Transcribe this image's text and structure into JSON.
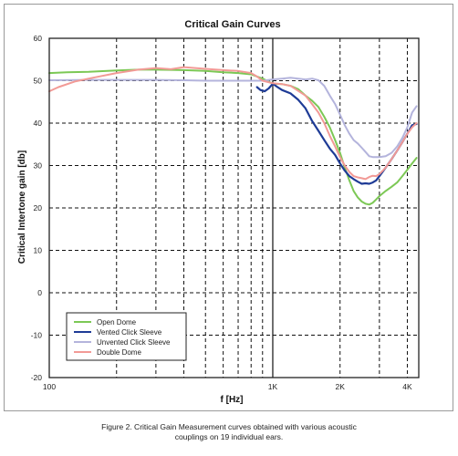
{
  "caption": {
    "line1": "Figure 2. Critical Gain Measurement curves obtained with various acoustic",
    "line2": "couplings on 19 individual ears."
  },
  "chart_data": {
    "type": "line",
    "title": "Critical Gain Curves",
    "xlabel": "f [Hz]",
    "ylabel": "Critical Intertone gain [db]",
    "xscale": "log",
    "xlim": [
      100,
      4500
    ],
    "ylim": [
      -20,
      60
    ],
    "yticks": [
      -20,
      -10,
      0,
      10,
      20,
      30,
      40,
      50,
      60
    ],
    "xtick_labels": [
      {
        "value": 100,
        "label": "100"
      },
      {
        "value": 1000,
        "label": "1K"
      },
      {
        "value": 2000,
        "label": "2K"
      },
      {
        "value": 4000,
        "label": "4K"
      }
    ],
    "grid": true,
    "legend_position": "bottom-left",
    "series": [
      {
        "name": "Open Dome",
        "color": "#7cc855",
        "points": [
          [
            100,
            51.8
          ],
          [
            120,
            52
          ],
          [
            150,
            52.1
          ],
          [
            200,
            52.4
          ],
          [
            250,
            52.6
          ],
          [
            300,
            52.6
          ],
          [
            400,
            52.5
          ],
          [
            500,
            52.3
          ],
          [
            600,
            52
          ],
          [
            700,
            51.8
          ],
          [
            800,
            51.5
          ],
          [
            900,
            50.5
          ],
          [
            1000,
            49.3
          ],
          [
            1100,
            49.2
          ],
          [
            1200,
            48.8
          ],
          [
            1300,
            48
          ],
          [
            1400,
            46.5
          ],
          [
            1500,
            45.3
          ],
          [
            1600,
            43.8
          ],
          [
            1700,
            41.5
          ],
          [
            1800,
            39
          ],
          [
            1900,
            36
          ],
          [
            2000,
            33
          ],
          [
            2100,
            29.5
          ],
          [
            2200,
            26.5
          ],
          [
            2300,
            24
          ],
          [
            2400,
            22.5
          ],
          [
            2500,
            21.5
          ],
          [
            2600,
            21
          ],
          [
            2700,
            20.8
          ],
          [
            2800,
            21.2
          ],
          [
            2900,
            22
          ],
          [
            3000,
            22.8
          ],
          [
            3200,
            24
          ],
          [
            3400,
            25
          ],
          [
            3600,
            26
          ],
          [
            3800,
            27.5
          ],
          [
            4000,
            29
          ],
          [
            4200,
            30.5
          ],
          [
            4400,
            31.8
          ]
        ]
      },
      {
        "name": "Vented Click Sleeve",
        "color": "#1e3b96",
        "points": [
          [
            850,
            48.5
          ],
          [
            880,
            47.8
          ],
          [
            920,
            47.5
          ],
          [
            960,
            48.2
          ],
          [
            1000,
            49.3
          ],
          [
            1050,
            48.5
          ],
          [
            1100,
            47.8
          ],
          [
            1200,
            47
          ],
          [
            1300,
            45.5
          ],
          [
            1400,
            43.5
          ],
          [
            1500,
            40.5
          ],
          [
            1600,
            38.2
          ],
          [
            1700,
            36
          ],
          [
            1800,
            34
          ],
          [
            1900,
            32.5
          ],
          [
            2000,
            30.5
          ],
          [
            2100,
            28.8
          ],
          [
            2200,
            27.5
          ],
          [
            2300,
            26.8
          ],
          [
            2400,
            26.2
          ],
          [
            2500,
            25.7
          ],
          [
            2600,
            25.8
          ],
          [
            2700,
            25.7
          ],
          [
            2800,
            26
          ],
          [
            2900,
            26.5
          ],
          [
            3000,
            27.5
          ],
          [
            3200,
            29.5
          ],
          [
            3400,
            31.5
          ],
          [
            3600,
            33.5
          ],
          [
            3800,
            35.5
          ],
          [
            4000,
            37.5
          ],
          [
            4200,
            39.5
          ],
          [
            4400,
            39.8
          ]
        ]
      },
      {
        "name": "Unvented Click Sleeve",
        "color": "#b4b4dc",
        "points": [
          [
            100,
            50.1
          ],
          [
            150,
            50.2
          ],
          [
            200,
            50.2
          ],
          [
            300,
            50.2
          ],
          [
            400,
            50.1
          ],
          [
            500,
            50
          ],
          [
            700,
            50
          ],
          [
            800,
            50
          ],
          [
            900,
            50
          ],
          [
            1000,
            50.3
          ],
          [
            1100,
            50.5
          ],
          [
            1200,
            50.7
          ],
          [
            1300,
            50.5
          ],
          [
            1400,
            50.3
          ],
          [
            1500,
            50.5
          ],
          [
            1600,
            50.1
          ],
          [
            1700,
            48.8
          ],
          [
            1800,
            46.5
          ],
          [
            1900,
            44.5
          ],
          [
            2000,
            42
          ],
          [
            2100,
            39.5
          ],
          [
            2200,
            37.5
          ],
          [
            2300,
            36
          ],
          [
            2400,
            35.2
          ],
          [
            2500,
            34.2
          ],
          [
            2600,
            33.2
          ],
          [
            2700,
            32.2
          ],
          [
            2800,
            32
          ],
          [
            3000,
            32
          ],
          [
            3200,
            32.2
          ],
          [
            3400,
            33
          ],
          [
            3600,
            34.5
          ],
          [
            3800,
            36.5
          ],
          [
            4000,
            39
          ],
          [
            4200,
            42.5
          ],
          [
            4400,
            44
          ]
        ]
      },
      {
        "name": "Double Dome",
        "color": "#f29a96",
        "points": [
          [
            100,
            47.5
          ],
          [
            110,
            48.5
          ],
          [
            130,
            49.8
          ],
          [
            160,
            50.8
          ],
          [
            200,
            51.8
          ],
          [
            250,
            52.6
          ],
          [
            300,
            53
          ],
          [
            350,
            52.7
          ],
          [
            400,
            53.2
          ],
          [
            450,
            53
          ],
          [
            500,
            52.8
          ],
          [
            600,
            52.5
          ],
          [
            700,
            52.3
          ],
          [
            800,
            51.8
          ],
          [
            850,
            51
          ],
          [
            900,
            50
          ],
          [
            1000,
            49.4
          ],
          [
            1100,
            49.2
          ],
          [
            1200,
            48.8
          ],
          [
            1300,
            47.6
          ],
          [
            1400,
            46.5
          ],
          [
            1500,
            44.5
          ],
          [
            1600,
            42.5
          ],
          [
            1700,
            40
          ],
          [
            1800,
            37
          ],
          [
            1900,
            34.5
          ],
          [
            2000,
            32
          ],
          [
            2100,
            30
          ],
          [
            2200,
            28.5
          ],
          [
            2300,
            27.5
          ],
          [
            2400,
            27.2
          ],
          [
            2500,
            27
          ],
          [
            2600,
            26.8
          ],
          [
            2700,
            27.3
          ],
          [
            2800,
            27.6
          ],
          [
            2900,
            27.5
          ],
          [
            3000,
            28
          ],
          [
            3200,
            29.5
          ],
          [
            3400,
            31.5
          ],
          [
            3600,
            33.5
          ],
          [
            3800,
            35.5
          ],
          [
            4000,
            37.5
          ],
          [
            4200,
            39
          ],
          [
            4400,
            40
          ]
        ]
      }
    ]
  }
}
